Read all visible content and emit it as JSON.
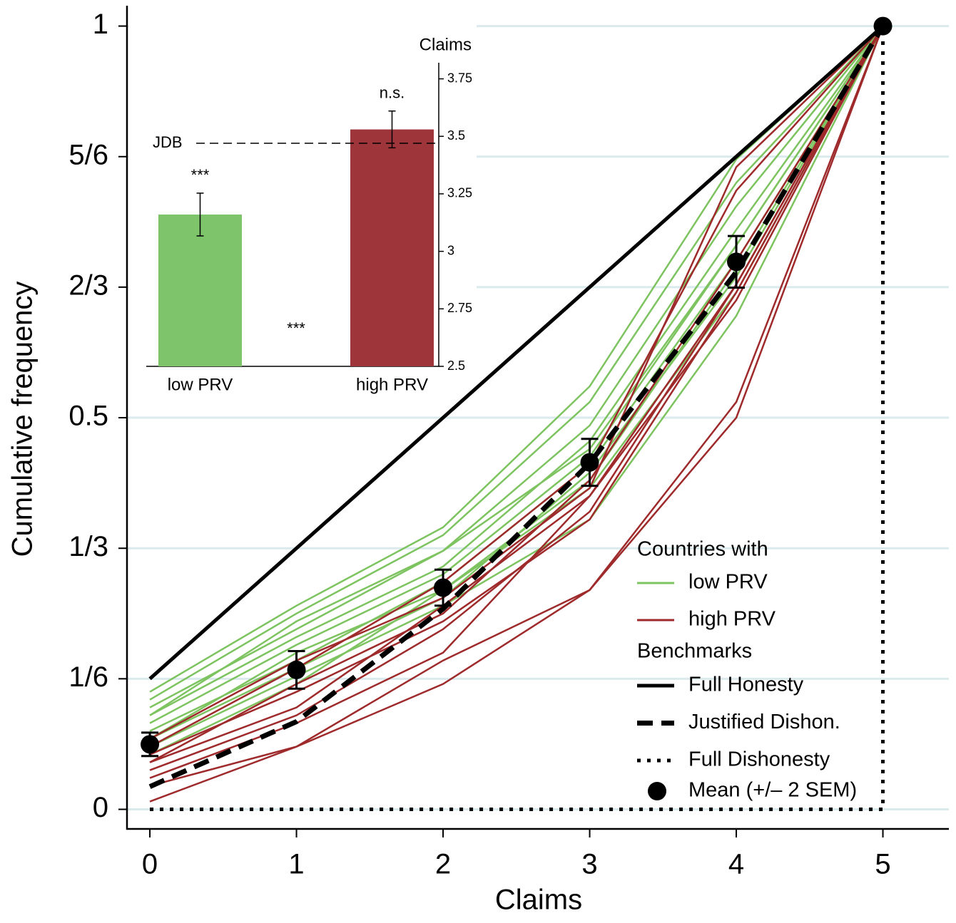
{
  "chart_data": {
    "type": "line",
    "x_label": "Claims",
    "y_label": "Cumulative frequency",
    "x": [
      0,
      1,
      2,
      3,
      4,
      5
    ],
    "xlim": [
      -0.156,
      5.45
    ],
    "xticks": [
      0,
      1,
      2,
      3,
      4,
      5
    ],
    "ylim": [
      -0.025,
      1.026
    ],
    "yticks": [
      0,
      {
        "value": 0.1667,
        "label": "1/6"
      },
      {
        "value": 0.3333,
        "label": "1/3"
      },
      0.5,
      {
        "value": 0.6667,
        "label": "2/3"
      },
      {
        "value": 0.8333,
        "label": "5/6"
      },
      1
    ],
    "grid": true,
    "legend_title": "Countries with",
    "benchmarks_title": "Benchmarks",
    "country_groups": [
      {
        "name": "low PRV",
        "color": "#7dc460",
        "lines": [
          [
            0.15,
            0.26,
            0.36,
            0.54,
            0.83,
            1
          ],
          [
            0.14,
            0.25,
            0.35,
            0.52,
            0.8,
            1
          ],
          [
            0.13,
            0.23,
            0.33,
            0.49,
            0.77,
            1
          ],
          [
            0.12,
            0.22,
            0.31,
            0.47,
            0.74,
            1
          ],
          [
            0.11,
            0.21,
            0.3,
            0.45,
            0.72,
            1
          ],
          [
            0.1,
            0.19,
            0.29,
            0.44,
            0.7,
            1
          ],
          [
            0.09,
            0.18,
            0.27,
            0.43,
            0.68,
            1
          ],
          [
            0.09,
            0.2,
            0.28,
            0.41,
            0.66,
            1
          ],
          [
            0.08,
            0.17,
            0.26,
            0.37,
            0.63,
            1
          ],
          [
            0.07,
            0.16,
            0.28,
            0.42,
            0.69,
            1
          ],
          [
            0.12,
            0.24,
            0.33,
            0.46,
            0.72,
            1
          ]
        ]
      },
      {
        "name": "high PRV",
        "color": "#9e2a2b",
        "lines": [
          [
            0.09,
            0.19,
            0.27,
            0.41,
            0.82,
            1
          ],
          [
            0.08,
            0.18,
            0.29,
            0.44,
            0.79,
            1
          ],
          [
            0.06,
            0.16,
            0.25,
            0.42,
            0.7,
            1
          ],
          [
            0.06,
            0.13,
            0.26,
            0.4,
            0.65,
            1
          ],
          [
            0.05,
            0.12,
            0.23,
            0.38,
            0.67,
            1
          ],
          [
            0.04,
            0.11,
            0.2,
            0.4,
            0.67,
            1
          ],
          [
            0.03,
            0.08,
            0.19,
            0.28,
            0.52,
            1
          ],
          [
            0.01,
            0.08,
            0.16,
            0.28,
            0.5,
            1
          ],
          [
            0.07,
            0.15,
            0.24,
            0.37,
            0.66,
            1
          ]
        ]
      }
    ],
    "benchmarks": [
      {
        "name": "Full Honesty",
        "style": "solid",
        "color": "#000000",
        "x": [
          0,
          5
        ],
        "values": [
          0.1667,
          1
        ]
      },
      {
        "name": "Justified Dishon.",
        "style": "dashed",
        "color": "#000000",
        "x": [
          0,
          1,
          2,
          3,
          4,
          5
        ],
        "values": [
          0.029,
          0.112,
          0.256,
          0.442,
          0.686,
          1
        ]
      },
      {
        "name": "Full Dishonesty",
        "style": "dotted",
        "color": "#000000",
        "x": [
          0,
          5,
          5
        ],
        "values": [
          0,
          0,
          1
        ]
      }
    ],
    "mean": {
      "name": "Mean (+/– 2 SEM)",
      "color": "#000000",
      "x": [
        0,
        1,
        2,
        3,
        4,
        5
      ],
      "values": [
        0.083,
        0.178,
        0.283,
        0.443,
        0.699,
        1
      ],
      "errors": [
        0.015,
        0.024,
        0.023,
        0.03,
        0.033,
        0
      ]
    },
    "inset": {
      "type": "bar",
      "y_label": "Claims",
      "categories": [
        "low PRV",
        "high PRV"
      ],
      "values": [
        3.16,
        3.53
      ],
      "errors": [
        0.093,
        0.08
      ],
      "colors": [
        "#7dc46b",
        "#9e353b"
      ],
      "value_annotations": [
        "***",
        "n.s."
      ],
      "between_annotation": "***",
      "ylim": [
        2.5,
        3.82
      ],
      "yticks": [
        2.5,
        2.75,
        3,
        3.25,
        3.5,
        3.75
      ],
      "reference": {
        "label": "JDB",
        "value": 3.47
      }
    }
  }
}
